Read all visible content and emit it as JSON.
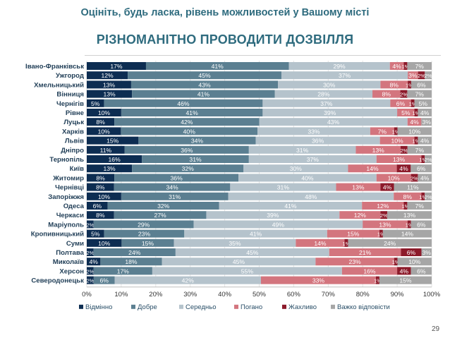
{
  "title": "Оцініть, будь ласка, рівень можливостей у Вашому місті",
  "subtitle": "РІЗНОМАНІТНО ПРОВОДИТИ ДОЗВІЛЛЯ",
  "page_number": "29",
  "chart_data": {
    "type": "bar",
    "orientation": "horizontal",
    "stacked": true,
    "xlim": [
      0,
      100
    ],
    "x_ticks": [
      "0%",
      "10%",
      "20%",
      "30%",
      "40%",
      "50%",
      "60%",
      "70%",
      "80%",
      "90%",
      "100%"
    ],
    "legend_position": "bottom",
    "colors": [
      "#0d2d52",
      "#5b7f91",
      "#b5c3cc",
      "#d3757e",
      "#8c1a2a",
      "#a6a6a6"
    ],
    "categories": [
      "Івано-Франківськ",
      "Ужгород",
      "Хмельницький",
      "Вінниця",
      "Чернігів",
      "Рівне",
      "Луцьк",
      "Харків",
      "Львів",
      "Дніпро",
      "Тернопіль",
      "Київ",
      "Житомир",
      "Чернівці",
      "Запоріжжя",
      "Одеса",
      "Черкаси",
      "Маріуполь",
      "Кропивницький",
      "Суми",
      "Полтава",
      "Миколаїв",
      "Херсон",
      "Северодонецьк"
    ],
    "series": [
      {
        "name": "Відмінно",
        "values": [
          17,
          12,
          13,
          13,
          5,
          10,
          8,
          10,
          15,
          11,
          16,
          13,
          8,
          8,
          10,
          6,
          8,
          2,
          5,
          10,
          2,
          4,
          2,
          2
        ]
      },
      {
        "name": "Добре",
        "values": [
          41,
          45,
          43,
          41,
          46,
          41,
          42,
          40,
          34,
          36,
          31,
          32,
          36,
          34,
          31,
          32,
          27,
          29,
          23,
          15,
          24,
          18,
          17,
          6
        ]
      },
      {
        "name": "Середньо",
        "values": [
          29,
          37,
          30,
          28,
          37,
          39,
          43,
          33,
          36,
          31,
          37,
          30,
          40,
          31,
          48,
          41,
          39,
          49,
          41,
          35,
          45,
          45,
          55,
          42
        ]
      },
      {
        "name": "Погано",
        "values": [
          4,
          3,
          8,
          8,
          6,
          5,
          4,
          7,
          10,
          13,
          13,
          14,
          10,
          13,
          8,
          12,
          12,
          13,
          15,
          14,
          21,
          23,
          16,
          33
        ]
      },
      {
        "name": "Жахливо",
        "values": [
          1,
          2,
          1,
          2,
          1,
          1,
          0,
          1,
          1,
          2,
          1,
          4,
          2,
          4,
          1,
          1,
          2,
          1,
          1,
          1,
          6,
          1,
          4,
          1
        ]
      },
      {
        "name": "Важко відповісти",
        "values": [
          7,
          2,
          6,
          7,
          5,
          4,
          3,
          10,
          4,
          7,
          2,
          6,
          4,
          11,
          2,
          7,
          13,
          6,
          14,
          24,
          3,
          10,
          6,
          15
        ]
      }
    ]
  }
}
